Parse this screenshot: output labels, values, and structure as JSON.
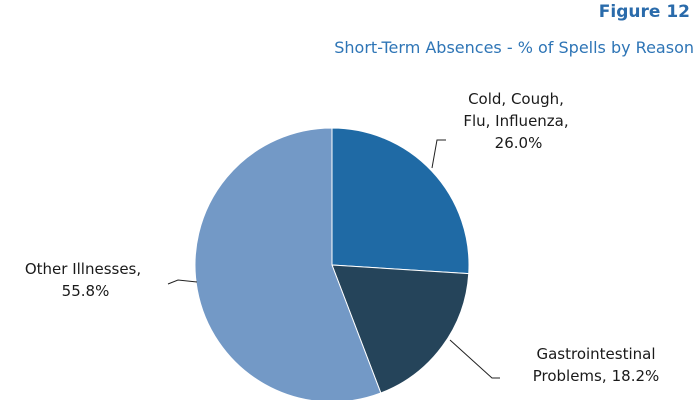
{
  "chart_data": {
    "type": "pie",
    "title": "Figure 12",
    "subtitle": "Short-Term Absences - % of Spells by Reason",
    "categories": [
      "Cold, Cough, Flu, Influenza,",
      "Gastrointestinal Problems,",
      "Other Illnesses,"
    ],
    "values": [
      26.0,
      18.2,
      55.8
    ],
    "value_labels": [
      "26.0%",
      "18.2%",
      "55.8%"
    ],
    "colors": [
      "#1f6aa5",
      "#25445a",
      "#7399c6"
    ]
  }
}
